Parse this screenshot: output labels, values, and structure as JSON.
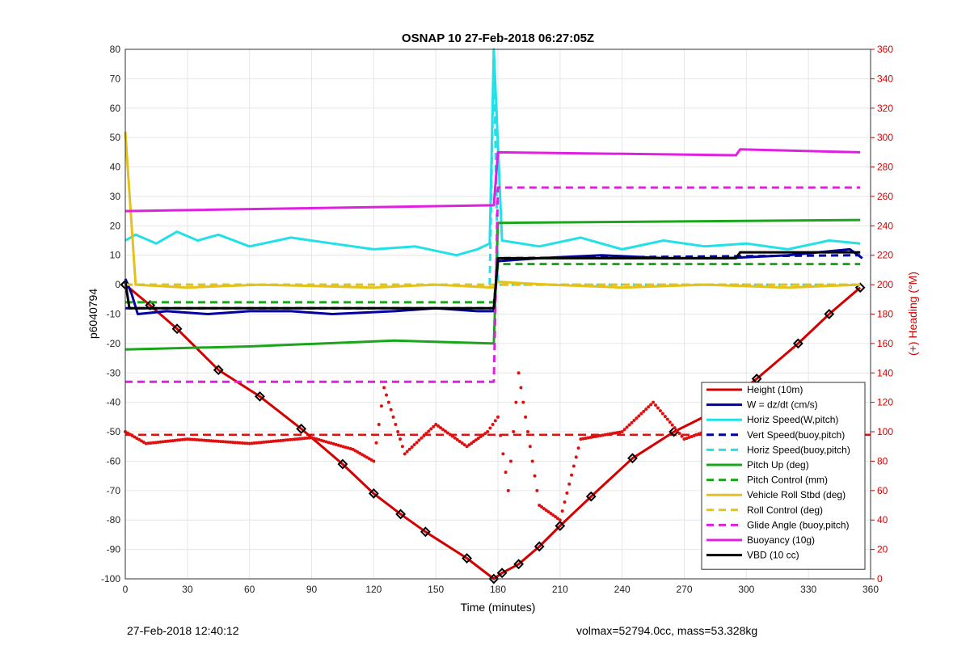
{
  "chart_data": {
    "type": "line",
    "title": "OSNAP 10 27-Feb-2018 06:27:05Z",
    "xlabel": "Time (minutes)",
    "ylabel": "p6040794",
    "y2label": "(+) Heading (°M)",
    "xlim": [
      0,
      360
    ],
    "ylim": [
      -100,
      80
    ],
    "y2lim": [
      0,
      360
    ],
    "xticks": [
      "0",
      "30",
      "60",
      "90",
      "120",
      "150",
      "180",
      "210",
      "240",
      "270",
      "300",
      "330",
      "360"
    ],
    "yticks": [
      "-100",
      "-90",
      "-80",
      "-70",
      "-60",
      "-50",
      "-40",
      "-30",
      "-20",
      "-10",
      "0",
      "10",
      "20",
      "30",
      "40",
      "50",
      "60",
      "70",
      "80"
    ],
    "y2ticks": [
      "0",
      "20",
      "40",
      "60",
      "80",
      "100",
      "120",
      "140",
      "160",
      "180",
      "200",
      "220",
      "240",
      "260",
      "280",
      "300",
      "320",
      "340",
      "360"
    ],
    "grid": true,
    "legend_position": "bottom-right",
    "colors": {
      "height": "#d40000",
      "w": "#0000a0",
      "horiz_speed": "#22e0e8",
      "pitch_up": "#1aa51a",
      "roll": "#e5c21a",
      "glide": "#e020e0",
      "buoyancy": "#e020e0",
      "vbd": "#000000",
      "heading": "#e01010",
      "axis2": "#d40000"
    },
    "series": [
      {
        "name": "Height (10m)",
        "style": "solid",
        "color": "#d40000",
        "x": [
          0,
          12,
          25,
          45,
          65,
          85,
          105,
          120,
          133,
          145,
          165,
          178,
          182,
          190,
          200,
          210,
          225,
          245,
          265,
          285,
          305,
          325,
          340,
          355
        ],
        "y": [
          0,
          -7,
          -15,
          -29,
          -38,
          -49,
          -61,
          -71,
          -78,
          -84,
          -93,
          -100,
          -98,
          -95,
          -89,
          -82,
          -72,
          -59,
          -50,
          -43,
          -32,
          -20,
          -10,
          -1
        ]
      },
      {
        "name": "W = dz/dt (cm/s)",
        "style": "solid",
        "color": "#0000a0",
        "x": [
          0,
          3,
          6,
          20,
          40,
          60,
          80,
          100,
          130,
          150,
          170,
          178,
          180,
          200,
          230,
          260,
          290,
          320,
          350,
          356
        ],
        "y": [
          2,
          -3,
          -10,
          -9,
          -10,
          -9,
          -9,
          -10,
          -9,
          -8,
          -9,
          -9,
          8,
          9,
          10,
          9,
          9,
          10,
          12,
          9
        ]
      },
      {
        "name": "Horiz Speed(W,pitch)",
        "style": "solid",
        "color": "#22e0e8",
        "x": [
          0,
          5,
          15,
          25,
          35,
          45,
          60,
          80,
          100,
          120,
          140,
          160,
          170,
          176,
          178,
          182,
          200,
          220,
          240,
          260,
          280,
          300,
          320,
          340,
          355
        ],
        "y": [
          15,
          17,
          14,
          18,
          15,
          17,
          13,
          16,
          14,
          12,
          13,
          10,
          12,
          14,
          80,
          15,
          13,
          16,
          12,
          15,
          13,
          14,
          12,
          15,
          14
        ]
      },
      {
        "name": "Vert Speed(buoy,pitch)",
        "style": "dashed",
        "color": "#0000a0",
        "x": [
          0,
          178,
          180,
          355
        ],
        "y": [
          -8,
          -8,
          9,
          10
        ]
      },
      {
        "name": "Horiz Speed(buoy,pitch)",
        "style": "dashed",
        "color": "#22e0e8",
        "x": [
          0,
          176,
          178,
          180,
          355
        ],
        "y": [
          0,
          0,
          80,
          0,
          0
        ]
      },
      {
        "name": "Pitch Up (deg)",
        "style": "solid",
        "color": "#1aa51a",
        "x": [
          0,
          60,
          130,
          178,
          180,
          355
        ],
        "y": [
          -22,
          -21,
          -19,
          -20,
          21,
          22
        ]
      },
      {
        "name": "Pitch Control (mm)",
        "style": "dashed",
        "color": "#1aa51a",
        "x": [
          0,
          178,
          180,
          355
        ],
        "y": [
          -6,
          -6,
          7,
          7
        ]
      },
      {
        "name": "Vehicle Roll Stbd (deg)",
        "style": "solid",
        "color": "#e5c21a",
        "x": [
          0,
          5,
          30,
          65,
          120,
          150,
          178,
          180,
          205,
          240,
          280,
          320,
          355
        ],
        "y": [
          52,
          0,
          -1,
          0,
          -1,
          0,
          -1,
          1,
          0,
          -1,
          0,
          -1,
          0
        ]
      },
      {
        "name": "Roll Control (deg)",
        "style": "dashed",
        "color": "#e5c21a",
        "x": [
          0,
          180,
          355
        ],
        "y": [
          0,
          0,
          0
        ]
      },
      {
        "name": "Glide Angle (buoy,pitch)",
        "style": "dashed",
        "color": "#e020e0",
        "x": [
          0,
          178,
          180,
          355
        ],
        "y": [
          -33,
          -33,
          33,
          33
        ]
      },
      {
        "name": "Buoyancy (10g)",
        "style": "solid",
        "color": "#e020e0",
        "x": [
          0,
          178,
          180,
          295,
          297,
          355
        ],
        "y": [
          25,
          27,
          45,
          44,
          46,
          45
        ]
      },
      {
        "name": "VBD (10 cc)",
        "style": "solid",
        "color": "#000000",
        "x": [
          0,
          2,
          30,
          60,
          90,
          120,
          150,
          178,
          180,
          240,
          295,
          297,
          355
        ],
        "y": [
          1,
          -8,
          -8,
          -8,
          -8,
          -8,
          -8,
          -8,
          9,
          9,
          9,
          11,
          11
        ]
      },
      {
        "name": "Heading (°M)",
        "style": "dots",
        "color": "#e01010",
        "axis": "right",
        "x": [
          0,
          10,
          30,
          60,
          90,
          110,
          120,
          125,
          135,
          150,
          165,
          175,
          180,
          185,
          190,
          200,
          210,
          220,
          240,
          255,
          270,
          290,
          310,
          330,
          355
        ],
        "y": [
          100,
          92,
          95,
          92,
          96,
          88,
          80,
          130,
          85,
          105,
          90,
          100,
          110,
          60,
          140,
          50,
          40,
          95,
          100,
          120,
          95,
          105,
          100,
          95,
          100
        ]
      }
    ],
    "heading_reference": 98
  },
  "footer": {
    "left": "27-Feb-2018 12:40:12",
    "right": "volmax=52794.0cc, mass=53.328kg"
  }
}
